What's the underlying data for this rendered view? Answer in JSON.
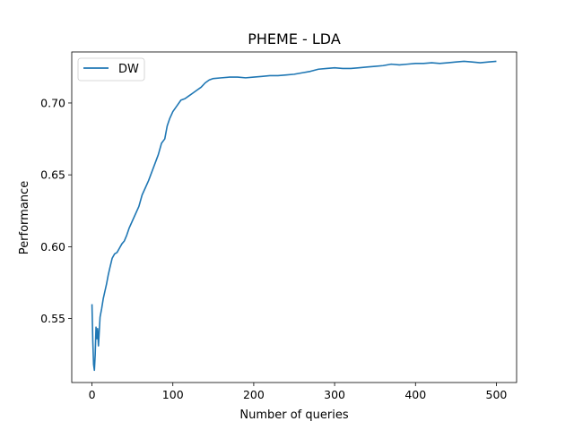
{
  "chart_data": {
    "type": "line",
    "title": "PHEME - LDA",
    "xlabel": "Number of queries",
    "ylabel": "Performance",
    "xlim": [
      -25,
      525
    ],
    "ylim": [
      0.5055,
      0.7355
    ],
    "xticks": [
      0,
      100,
      200,
      300,
      400,
      500
    ],
    "yticks": [
      0.55,
      0.6,
      0.65,
      0.7
    ],
    "xtick_labels": [
      "0",
      "100",
      "200",
      "300",
      "400",
      "500"
    ],
    "ytick_labels": [
      "0.55",
      "0.60",
      "0.65",
      "0.70"
    ],
    "grid": false,
    "legend_position": "top-left",
    "series": [
      {
        "name": "DW",
        "color": "#1f77b4",
        "points": [
          [
            0,
            0.56
          ],
          [
            1,
            0.535
          ],
          [
            2,
            0.518
          ],
          [
            3,
            0.514
          ],
          [
            4,
            0.525
          ],
          [
            5,
            0.544
          ],
          [
            6,
            0.536
          ],
          [
            7,
            0.543
          ],
          [
            8,
            0.531
          ],
          [
            9,
            0.541
          ],
          [
            10,
            0.551
          ],
          [
            12,
            0.557
          ],
          [
            14,
            0.564
          ],
          [
            16,
            0.569
          ],
          [
            18,
            0.574
          ],
          [
            20,
            0.58
          ],
          [
            22,
            0.585
          ],
          [
            25,
            0.592
          ],
          [
            28,
            0.595
          ],
          [
            31,
            0.596
          ],
          [
            34,
            0.599
          ],
          [
            37,
            0.602
          ],
          [
            40,
            0.604
          ],
          [
            43,
            0.608
          ],
          [
            46,
            0.613
          ],
          [
            50,
            0.618
          ],
          [
            54,
            0.623
          ],
          [
            58,
            0.628
          ],
          [
            62,
            0.636
          ],
          [
            66,
            0.641
          ],
          [
            70,
            0.646
          ],
          [
            74,
            0.652
          ],
          [
            78,
            0.658
          ],
          [
            82,
            0.664
          ],
          [
            86,
            0.672
          ],
          [
            90,
            0.675
          ],
          [
            93,
            0.684
          ],
          [
            96,
            0.689
          ],
          [
            100,
            0.694
          ],
          [
            105,
            0.698
          ],
          [
            110,
            0.702
          ],
          [
            115,
            0.703
          ],
          [
            120,
            0.705
          ],
          [
            125,
            0.707
          ],
          [
            130,
            0.709
          ],
          [
            135,
            0.711
          ],
          [
            140,
            0.714
          ],
          [
            145,
            0.716
          ],
          [
            150,
            0.717
          ],
          [
            160,
            0.7175
          ],
          [
            170,
            0.718
          ],
          [
            180,
            0.718
          ],
          [
            190,
            0.7175
          ],
          [
            200,
            0.718
          ],
          [
            210,
            0.7185
          ],
          [
            220,
            0.719
          ],
          [
            230,
            0.719
          ],
          [
            240,
            0.7195
          ],
          [
            250,
            0.72
          ],
          [
            260,
            0.721
          ],
          [
            270,
            0.722
          ],
          [
            280,
            0.7235
          ],
          [
            290,
            0.724
          ],
          [
            300,
            0.7245
          ],
          [
            310,
            0.724
          ],
          [
            320,
            0.724
          ],
          [
            330,
            0.7245
          ],
          [
            340,
            0.725
          ],
          [
            350,
            0.7255
          ],
          [
            360,
            0.726
          ],
          [
            370,
            0.727
          ],
          [
            380,
            0.7265
          ],
          [
            390,
            0.727
          ],
          [
            400,
            0.7275
          ],
          [
            410,
            0.7275
          ],
          [
            420,
            0.728
          ],
          [
            430,
            0.7275
          ],
          [
            440,
            0.728
          ],
          [
            450,
            0.7285
          ],
          [
            460,
            0.729
          ],
          [
            470,
            0.7285
          ],
          [
            480,
            0.728
          ],
          [
            490,
            0.7285
          ],
          [
            500,
            0.729
          ]
        ]
      }
    ]
  }
}
